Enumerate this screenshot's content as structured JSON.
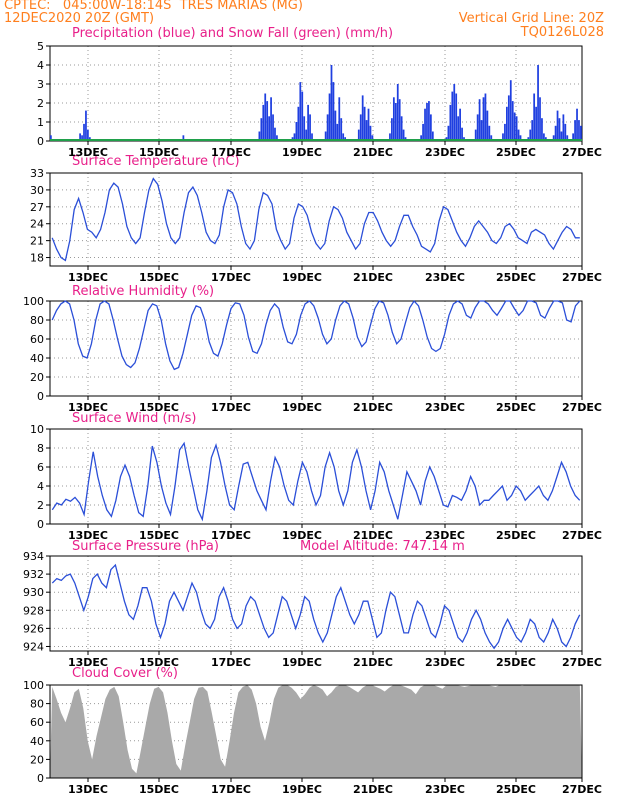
{
  "header": {
    "source_line": "CPTEC:   045:00W-18:14S  TRES MARIAS (MG)",
    "date_line": "12DEC2020 20Z (GMT)",
    "grid_note": "Vertical Grid Line: 20Z",
    "code": "TQ0126L028"
  },
  "colors": {
    "header": "#ff7f1e",
    "title": "#e8208a",
    "line": "#2b4fd8",
    "precip": "#1f3fe0",
    "snow": "#1fa04a",
    "cloud": "#a9a9a9"
  },
  "x_axis_labels": [
    "13DEC",
    "15DEC",
    "17DEC",
    "19DEC",
    "21DEC",
    "23DEC",
    "25DEC",
    "27DEC"
  ],
  "chart_data": [
    {
      "id": "precip",
      "type": "bar",
      "title": "Precipitation (blue) and Snow Fall (green) (mm/h)",
      "ylim": [
        0,
        5
      ],
      "yticks": [
        0,
        1,
        2,
        3,
        4,
        5
      ],
      "series": [
        {
          "name": "Precipitation",
          "color": "#1f3fe0",
          "values": [
            0.3,
            0.05,
            0,
            0,
            0,
            0,
            0,
            0,
            0,
            0,
            0,
            0,
            0,
            0,
            0,
            0.4,
            0.3,
            0.9,
            1.6,
            0.6,
            0.2,
            0,
            0,
            0,
            0,
            0,
            0,
            0,
            0,
            0,
            0,
            0,
            0,
            0,
            0,
            0,
            0,
            0,
            0,
            0,
            0,
            0,
            0,
            0,
            0,
            0,
            0,
            0,
            0,
            0,
            0,
            0,
            0,
            0,
            0,
            0,
            0.1,
            0,
            0,
            0,
            0,
            0,
            0,
            0,
            0,
            0,
            0,
            0,
            0.3,
            0,
            0,
            0,
            0,
            0,
            0,
            0,
            0,
            0,
            0.1,
            0,
            0,
            0,
            0,
            0,
            0,
            0,
            0,
            0,
            0,
            0,
            0,
            0,
            0,
            0,
            0,
            0,
            0,
            0,
            0,
            0,
            0,
            0,
            0,
            0,
            0,
            0,
            0,
            0.5,
            1.2,
            1.9,
            2.5,
            2.1,
            1.3,
            2.3,
            1.4,
            0.7,
            0.3,
            0.1,
            0,
            0,
            0,
            0,
            0,
            0,
            0.2,
            0.4,
            1.0,
            1.8,
            3.1,
            2.6,
            1.3,
            0.6,
            1.9,
            1.4,
            0.4,
            0.1,
            0,
            0,
            0,
            0,
            0,
            0.5,
            1.4,
            2.5,
            4.0,
            3.1,
            1.6,
            0.9,
            2.3,
            1.2,
            0.4,
            0.2,
            0,
            0,
            0,
            0,
            0,
            0.1,
            0.6,
            1.4,
            2.4,
            1.8,
            1.1,
            1.7,
            0.8,
            0.3,
            0.1,
            0,
            0,
            0,
            0,
            0,
            0,
            0,
            0.4,
            1.2,
            2.3,
            2.0,
            3.0,
            2.2,
            1.3,
            0.6,
            0.2,
            0,
            0,
            0,
            0,
            0,
            0,
            0,
            0.3,
            0.9,
            1.7,
            2.0,
            2.1,
            1.4,
            0.5,
            0.1,
            0,
            0,
            0,
            0,
            0,
            0.2,
            0.8,
            1.9,
            2.6,
            3.0,
            2.5,
            1.3,
            1.7,
            0.7,
            0.2,
            0,
            0,
            0,
            0,
            0.1,
            0.6,
            1.4,
            2.2,
            1.1,
            2.3,
            2.5,
            1.6,
            0.8,
            0.3,
            0,
            0,
            0,
            0,
            0.1,
            0.4,
            0.9,
            1.8,
            2.4,
            3.2,
            2.1,
            1.5,
            1.3,
            0.6,
            0.3,
            0,
            0,
            0,
            0.2,
            0.6,
            1.1,
            2.5,
            1.8,
            4.0,
            2.3,
            1.2,
            0.4,
            0.2,
            0,
            0,
            0,
            0.3,
            0.8,
            1.6,
            1.2,
            0.5,
            1.4,
            0.9,
            0.3,
            0,
            0,
            0.4,
            1.1,
            1.7,
            1.1,
            0.8
          ]
        },
        {
          "name": "Snow Fall",
          "color": "#1fa04a",
          "values": [
            0
          ]
        }
      ]
    },
    {
      "id": "temp",
      "type": "line",
      "title": "Surface Temperature (nC)",
      "ylim": [
        16.5,
        33
      ],
      "yticks": [
        18,
        21,
        24,
        27,
        30,
        33
      ],
      "values": [
        21.5,
        19.5,
        18,
        17.5,
        21,
        26.5,
        28.5,
        26,
        23,
        22.5,
        21.5,
        23,
        26,
        30,
        31.2,
        30.5,
        27.5,
        23.5,
        21.5,
        20.5,
        21.5,
        26,
        30,
        32,
        31,
        28,
        24,
        21.5,
        20.5,
        21.5,
        26,
        29.5,
        30.5,
        29,
        26,
        22.5,
        21,
        20.5,
        22,
        27,
        30,
        29.5,
        27.5,
        23.5,
        20.5,
        19.5,
        21,
        26.5,
        29.5,
        29,
        27.5,
        23,
        21,
        19.5,
        20.5,
        25,
        27.5,
        27,
        25.5,
        22.5,
        20.5,
        19.5,
        20.5,
        24.5,
        27,
        26.5,
        25,
        22.5,
        21,
        19.5,
        20.5,
        24,
        26,
        26,
        24.5,
        22.5,
        21,
        20,
        21,
        23.5,
        25.5,
        25.5,
        23.5,
        22,
        20,
        19.5,
        19,
        20.5,
        24.5,
        27,
        26.5,
        24.5,
        22.5,
        21,
        20,
        21.5,
        23.5,
        24.5,
        23.5,
        22.5,
        21,
        20.5,
        21.5,
        23.5,
        24,
        23,
        21.5,
        21,
        20.5,
        22.5,
        23,
        22.5,
        22,
        20.5,
        19.5,
        21,
        22.5,
        23.5,
        23,
        21.5,
        21.5
      ]
    },
    {
      "id": "rh",
      "type": "line",
      "title": "Relative Humidity (%)",
      "ylim": [
        0,
        100
      ],
      "yticks": [
        0,
        20,
        40,
        60,
        80,
        100
      ],
      "values": [
        80,
        90,
        97,
        100,
        97,
        80,
        55,
        42,
        40,
        55,
        80,
        97,
        100,
        97,
        80,
        60,
        42,
        33,
        30,
        35,
        50,
        70,
        90,
        97,
        95,
        80,
        55,
        37,
        28,
        30,
        45,
        65,
        85,
        95,
        93,
        80,
        57,
        45,
        42,
        55,
        75,
        92,
        98,
        97,
        85,
        62,
        47,
        45,
        55,
        75,
        90,
        97,
        92,
        72,
        57,
        55,
        65,
        85,
        97,
        100,
        95,
        82,
        65,
        55,
        60,
        80,
        95,
        100,
        97,
        82,
        62,
        52,
        57,
        75,
        92,
        100,
        98,
        85,
        67,
        55,
        60,
        77,
        93,
        100,
        95,
        80,
        62,
        50,
        47,
        50,
        65,
        85,
        97,
        100,
        97,
        85,
        82,
        93,
        100,
        100,
        97,
        90,
        85,
        92,
        100,
        100,
        92,
        85,
        90,
        100,
        100,
        98,
        85,
        82,
        92,
        100,
        100,
        98,
        80,
        78,
        95,
        100
      ]
    },
    {
      "id": "wind",
      "type": "line",
      "title": "Surface Wind (m/s)",
      "ylim": [
        0,
        10
      ],
      "yticks": [
        0,
        2,
        4,
        6,
        8,
        10
      ],
      "values": [
        1.5,
        2.2,
        2.0,
        2.6,
        2.4,
        2.8,
        2.2,
        1.0,
        4.5,
        7.6,
        5.0,
        3.0,
        1.5,
        0.8,
        2.5,
        5.0,
        6.2,
        5.0,
        3.0,
        1.2,
        0.8,
        4.0,
        8.2,
        6.5,
        4.0,
        2.2,
        1.0,
        4.0,
        7.8,
        8.5,
        6.0,
        3.8,
        1.5,
        0.5,
        3.5,
        7.0,
        8.3,
        6.5,
        4.0,
        2.0,
        1.5,
        4.0,
        6.3,
        6.5,
        5.0,
        3.5,
        2.5,
        1.5,
        4.5,
        7.0,
        6.0,
        4.0,
        2.5,
        2.0,
        4.5,
        6.5,
        5.5,
        3.5,
        2.0,
        3.0,
        6.0,
        7.5,
        6.0,
        3.5,
        2.0,
        3.5,
        6.5,
        7.8,
        6.0,
        3.5,
        1.5,
        3.5,
        6.5,
        5.5,
        3.5,
        2.0,
        0.5,
        3.0,
        5.5,
        4.5,
        3.5,
        2.0,
        4.5,
        6.0,
        5.0,
        3.5,
        2.0,
        1.8,
        3.0,
        2.8,
        2.5,
        3.5,
        5.0,
        4.0,
        2.0,
        2.5,
        2.5,
        3.0,
        3.5,
        4.0,
        2.5,
        3.0,
        4.0,
        3.5,
        2.5,
        3.0,
        3.5,
        4.0,
        3.0,
        2.5,
        3.5,
        5.0,
        6.5,
        5.5,
        4.0,
        3.0,
        2.5
      ]
    },
    {
      "id": "pres",
      "type": "line",
      "title": "Surface Pressure (hPa)",
      "annotation": "Model Altitude: 747.14 m",
      "ylim": [
        923.5,
        934
      ],
      "yticks": [
        924,
        926,
        928,
        930,
        932,
        934
      ],
      "values": [
        931,
        931.5,
        931.3,
        931.8,
        932,
        931,
        929.5,
        928,
        929.5,
        931.5,
        932,
        931,
        930.5,
        932.5,
        933,
        931,
        929,
        927.5,
        927,
        928.5,
        930.5,
        930.5,
        929,
        926.5,
        925,
        926.5,
        929,
        930,
        929,
        928,
        929.5,
        931,
        930,
        928,
        926.5,
        926,
        927,
        929.5,
        930.5,
        929,
        927,
        926,
        926.5,
        928.5,
        929.5,
        929,
        927.5,
        926,
        925,
        925.5,
        927.5,
        929.5,
        929,
        927.5,
        926,
        927.5,
        929.5,
        929,
        927,
        925.5,
        924.5,
        925.5,
        927.5,
        929.5,
        930.5,
        929,
        927.5,
        926.5,
        927.5,
        929,
        929,
        927,
        925,
        925.5,
        928,
        930,
        929.5,
        927.5,
        925.5,
        925.5,
        927.5,
        929,
        928.5,
        927,
        925.5,
        925,
        926.5,
        928.5,
        928,
        926.5,
        925,
        924.5,
        925.5,
        927,
        928,
        927,
        925.5,
        924.5,
        923.8,
        924.5,
        926,
        927,
        926,
        925,
        924.5,
        925.5,
        927,
        926.5,
        925,
        924.5,
        925.5,
        927,
        926,
        924.5,
        924,
        925,
        926.5,
        927.5
      ]
    },
    {
      "id": "cloud",
      "type": "area",
      "title": "Cloud Cover (%)",
      "ylim": [
        0,
        100
      ],
      "yticks": [
        0,
        20,
        40,
        60,
        80,
        100
      ],
      "values": [
        98,
        85,
        70,
        60,
        75,
        92,
        96,
        75,
        40,
        20,
        45,
        65,
        85,
        95,
        98,
        88,
        60,
        30,
        10,
        5,
        30,
        55,
        80,
        96,
        98,
        92,
        70,
        40,
        15,
        8,
        35,
        60,
        85,
        97,
        98,
        93,
        70,
        45,
        20,
        12,
        40,
        70,
        92,
        98,
        100,
        95,
        80,
        55,
        40,
        60,
        85,
        97,
        100,
        100,
        97,
        92,
        85,
        90,
        97,
        100,
        98,
        95,
        88,
        92,
        98,
        100,
        100,
        98,
        95,
        92,
        97,
        100,
        100,
        98,
        96,
        93,
        97,
        100,
        100,
        99,
        97,
        95,
        90,
        97,
        100,
        100,
        100,
        98,
        96,
        100,
        100,
        100,
        99,
        98,
        99,
        100,
        100,
        100,
        100,
        99,
        98,
        100,
        100,
        100,
        100,
        100,
        99,
        100,
        100,
        100,
        100,
        100,
        100,
        100,
        100,
        100,
        100,
        100,
        100,
        100
      ]
    }
  ]
}
